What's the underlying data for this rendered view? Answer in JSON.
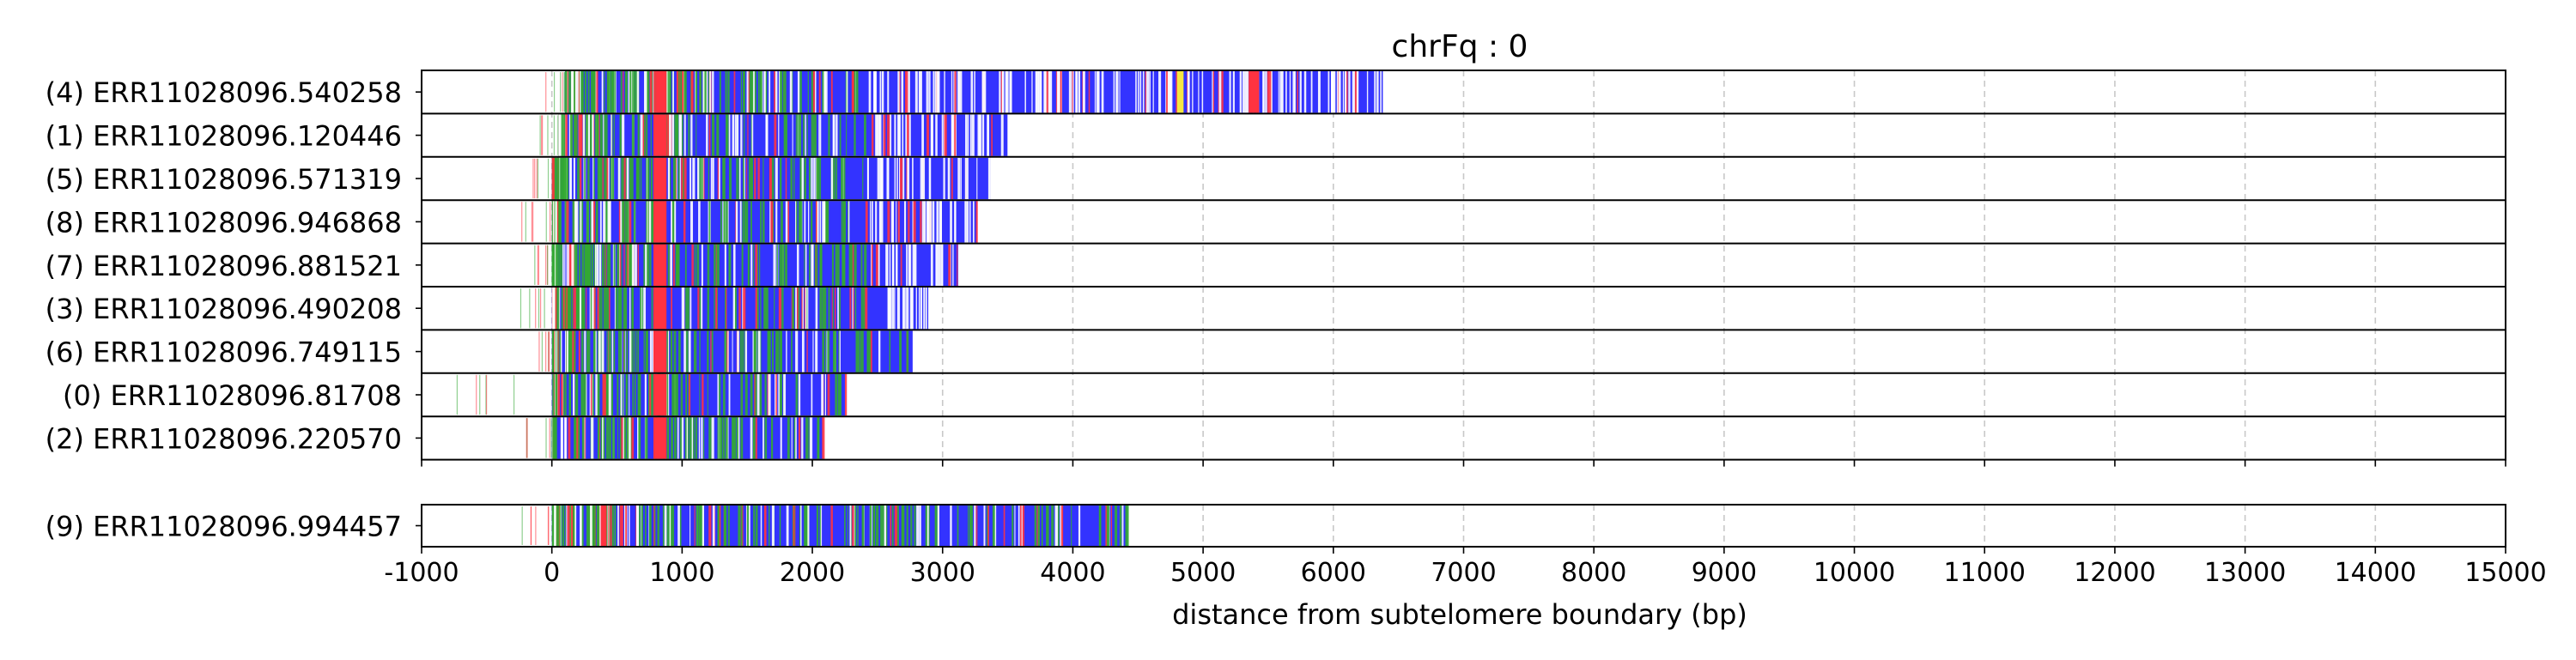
{
  "chart_data": {
    "type": "bar",
    "title": "chrFq : 0",
    "xlabel": "distance from subtelomere boundary (bp)",
    "ylabel": "",
    "xlim": [
      -1000,
      15000
    ],
    "xticks": [
      -1000,
      0,
      1000,
      2000,
      3000,
      4000,
      5000,
      6000,
      7000,
      8000,
      9000,
      10000,
      11000,
      12000,
      13000,
      14000,
      15000
    ],
    "grid": "vertical dashed",
    "colors": {
      "main": "#3333ff",
      "red": "#ff3340",
      "green": "#33a833",
      "yellow": "#f5e642",
      "white": "#ffffff",
      "grid": "#c8c8c8",
      "frame": "#000000"
    },
    "panels": [
      {
        "reads": [
          {
            "label": "(4) ERR11028096.540258",
            "start": -50,
            "end": 6380,
            "red_bands": [
              [
                800,
                880
              ],
              [
                5350,
                5430
              ]
            ],
            "yellow_bands": [
              [
                4800,
                4850
              ]
            ]
          },
          {
            "label": "(1) ERR11028096.120446",
            "start": -100,
            "end": 3500,
            "red_bands": [
              [
                780,
                880
              ]
            ],
            "yellow_bands": []
          },
          {
            "label": "(5) ERR11028096.571319",
            "start": -150,
            "end": 3370,
            "red_bands": [
              [
                780,
                880
              ]
            ],
            "yellow_bands": []
          },
          {
            "label": "(8) ERR11028096.946868",
            "start": -250,
            "end": 3270,
            "red_bands": [
              [
                780,
                880
              ]
            ],
            "yellow_bands": []
          },
          {
            "label": "(7) ERR11028096.881521",
            "start": -150,
            "end": 3120,
            "red_bands": [
              [
                780,
                880
              ]
            ],
            "yellow_bands": []
          },
          {
            "label": "(3) ERR11028096.490208",
            "start": -250,
            "end": 2890,
            "red_bands": [
              [
                780,
                880
              ]
            ],
            "yellow_bands": []
          },
          {
            "label": "(6) ERR11028096.749115",
            "start": -150,
            "end": 2770,
            "red_bands": [
              [
                780,
                880
              ]
            ],
            "yellow_bands": []
          },
          {
            "label": "(0) ERR11028096.81708",
            "start": -800,
            "end": 2250,
            "red_bands": [
              [
                780,
                880
              ]
            ],
            "yellow_bands": []
          },
          {
            "label": "(2) ERR11028096.220570",
            "start": -250,
            "end": 2080,
            "red_bands": [
              [
                780,
                880
              ]
            ],
            "yellow_bands": []
          }
        ]
      },
      {
        "reads": [
          {
            "label": "(9) ERR11028096.994457",
            "start": -250,
            "end": 4420,
            "red_bands": [
              [
                380,
                420
              ]
            ],
            "yellow_bands": []
          }
        ]
      }
    ]
  }
}
